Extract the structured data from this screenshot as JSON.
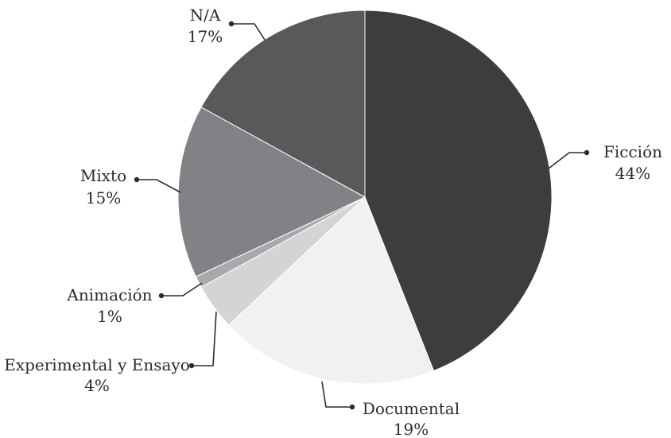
{
  "chart_data": {
    "type": "pie",
    "title": "",
    "slices": [
      {
        "label": "Ficción",
        "pct_label": "44%",
        "value": 44,
        "color": "#3d3d3f"
      },
      {
        "label": "Documental",
        "pct_label": "19%",
        "value": 19,
        "color": "#f1f1f2"
      },
      {
        "label": "Experimental y Ensayo",
        "pct_label": "4%",
        "value": 4,
        "color": "#d3d4d6"
      },
      {
        "label": "Animación",
        "pct_label": "1%",
        "value": 1,
        "color": "#a7a9ac"
      },
      {
        "label": "Mixto",
        "pct_label": "15%",
        "value": 15,
        "color": "#808285"
      },
      {
        "label": "N/A",
        "pct_label": "17%",
        "value": 17,
        "color": "#58595b"
      }
    ]
  }
}
